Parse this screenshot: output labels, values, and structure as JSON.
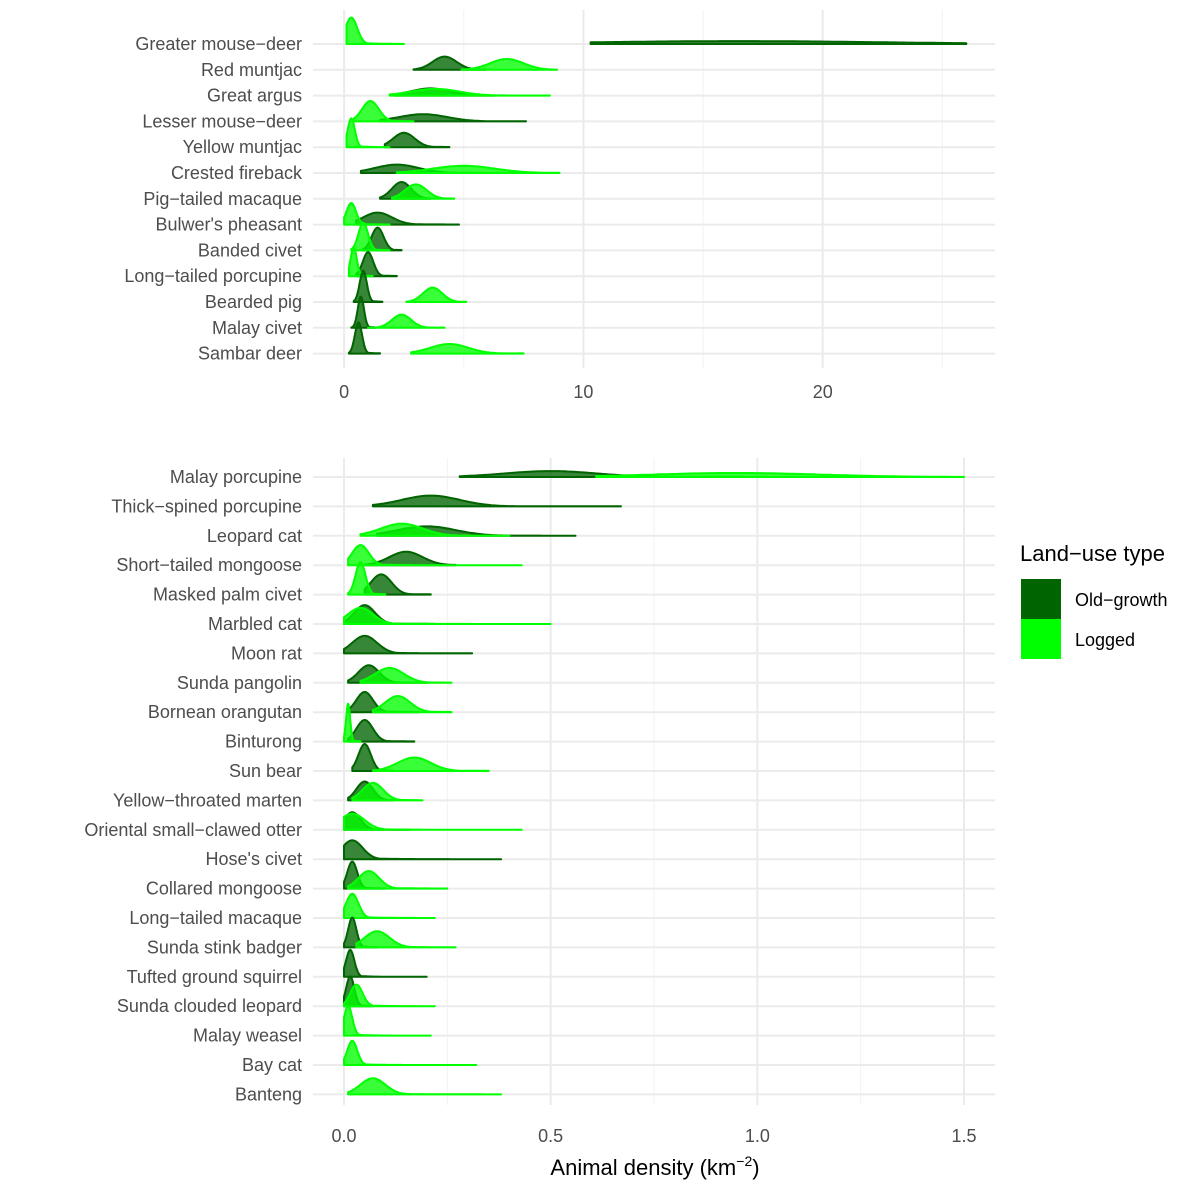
{
  "chart_data": [
    {
      "type": "area",
      "subtype": "ridgeline-density",
      "xlim": [
        -1.3,
        27.2
      ],
      "xticks": [
        "0",
        "10",
        "20"
      ],
      "xtick_values": [
        0,
        10,
        20
      ],
      "xgrid_minor": [
        5,
        15,
        25
      ],
      "grid": true,
      "series": [
        {
          "name": "Old-growth",
          "color": "#006400"
        },
        {
          "name": "Logged",
          "color": "#00ff00"
        }
      ],
      "species": [
        {
          "name": "Greater mouse−deer",
          "og": {
            "min": 10.3,
            "max": 26.0,
            "peak": 16.5,
            "sd": 6.0,
            "h": 0.12
          },
          "lg": {
            "min": 0.1,
            "max": 2.5,
            "peak": 0.3,
            "sd": 0.25,
            "h": 1.1
          }
        },
        {
          "name": "Red muntjac",
          "og": {
            "min": 2.9,
            "max": 5.9,
            "peak": 4.2,
            "sd": 0.5,
            "h": 0.55
          },
          "lg": {
            "min": 4.9,
            "max": 8.9,
            "peak": 6.8,
            "sd": 0.7,
            "h": 0.45
          }
        },
        {
          "name": "Great argus",
          "og": {
            "min": 2.1,
            "max": 6.3,
            "peak": 3.6,
            "sd": 0.8,
            "h": 0.3
          },
          "lg": {
            "min": 1.9,
            "max": 8.6,
            "peak": 3.8,
            "sd": 1.0,
            "h": 0.28
          }
        },
        {
          "name": "Lesser mouse−deer",
          "og": {
            "min": 1.5,
            "max": 7.6,
            "peak": 3.3,
            "sd": 1.0,
            "h": 0.3
          },
          "lg": {
            "min": 0.4,
            "max": 2.9,
            "peak": 1.1,
            "sd": 0.35,
            "h": 0.85
          }
        },
        {
          "name": "Yellow muntjac",
          "og": {
            "min": 1.7,
            "max": 4.4,
            "peak": 2.5,
            "sd": 0.45,
            "h": 0.6
          },
          "lg": {
            "min": 0.1,
            "max": 1.9,
            "peak": 0.3,
            "sd": 0.15,
            "h": 1.2
          }
        },
        {
          "name": "Crested fireback",
          "og": {
            "min": 0.7,
            "max": 7.2,
            "peak": 2.2,
            "sd": 0.9,
            "h": 0.35
          },
          "lg": {
            "min": 2.2,
            "max": 9.0,
            "peak": 5.0,
            "sd": 1.3,
            "h": 0.3
          }
        },
        {
          "name": "Pig−tailed macaque",
          "og": {
            "min": 1.5,
            "max": 3.6,
            "peak": 2.4,
            "sd": 0.4,
            "h": 0.7
          },
          "lg": {
            "min": 2.0,
            "max": 4.6,
            "peak": 3.0,
            "sd": 0.45,
            "h": 0.6
          }
        },
        {
          "name": "Bulwer's pheasant",
          "og": {
            "min": 0.5,
            "max": 4.8,
            "peak": 1.4,
            "sd": 0.6,
            "h": 0.5
          },
          "lg": {
            "min": 0.0,
            "max": 1.9,
            "peak": 0.3,
            "sd": 0.2,
            "h": 0.9
          }
        },
        {
          "name": "Banded civet",
          "og": {
            "min": 0.8,
            "max": 2.4,
            "peak": 1.4,
            "sd": 0.25,
            "h": 0.95
          },
          "lg": {
            "min": 0.3,
            "max": 1.9,
            "peak": 0.8,
            "sd": 0.2,
            "h": 1.15
          }
        },
        {
          "name": "Long−tailed porcupine",
          "og": {
            "min": 0.5,
            "max": 2.2,
            "peak": 1.0,
            "sd": 0.22,
            "h": 1.0
          },
          "lg": {
            "min": 0.2,
            "max": 1.2,
            "peak": 0.4,
            "sd": 0.13,
            "h": 1.2
          }
        },
        {
          "name": "Bearded pig",
          "og": {
            "min": 0.4,
            "max": 1.6,
            "peak": 0.8,
            "sd": 0.15,
            "h": 1.3
          },
          "lg": {
            "min": 2.6,
            "max": 5.1,
            "peak": 3.7,
            "sd": 0.4,
            "h": 0.6
          }
        },
        {
          "name": "Malay civet",
          "og": {
            "min": 0.3,
            "max": 1.3,
            "peak": 0.7,
            "sd": 0.13,
            "h": 1.3
          },
          "lg": {
            "min": 1.0,
            "max": 4.2,
            "peak": 2.4,
            "sd": 0.4,
            "h": 0.55
          }
        },
        {
          "name": "Sambar deer",
          "og": {
            "min": 0.2,
            "max": 1.5,
            "peak": 0.6,
            "sd": 0.15,
            "h": 1.3
          },
          "lg": {
            "min": 2.8,
            "max": 7.5,
            "peak": 4.4,
            "sd": 0.8,
            "h": 0.4
          }
        }
      ]
    },
    {
      "type": "area",
      "subtype": "ridgeline-density",
      "xlim": [
        -0.075,
        1.575
      ],
      "xticks": [
        "0.0",
        "0.5",
        "1.0",
        "1.5"
      ],
      "xtick_values": [
        0,
        0.5,
        1.0,
        1.5
      ],
      "xgrid_minor": [
        0.25,
        0.75,
        1.25
      ],
      "xlabel_prefix": "Animal density (km",
      "xlabel_superscript": "−2",
      "xlabel_suffix": ")",
      "grid": true,
      "series": [
        {
          "name": "Old-growth",
          "color": "#006400"
        },
        {
          "name": "Logged",
          "color": "#00ff00"
        }
      ],
      "species": [
        {
          "name": "Malay porcupine",
          "og": {
            "min": 0.28,
            "max": 0.97,
            "peak": 0.5,
            "sd": 0.11,
            "h": 0.22
          },
          "lg": {
            "min": 0.61,
            "max": 1.5,
            "peak": 0.95,
            "sd": 0.2,
            "h": 0.15
          }
        },
        {
          "name": "Thick−spined porcupine",
          "og": {
            "min": 0.07,
            "max": 0.67,
            "peak": 0.21,
            "sd": 0.07,
            "h": 0.4
          },
          "lg": null
        },
        {
          "name": "Leopard cat",
          "og": {
            "min": 0.08,
            "max": 0.56,
            "peak": 0.2,
            "sd": 0.07,
            "h": 0.35
          },
          "lg": {
            "min": 0.04,
            "max": 0.4,
            "peak": 0.14,
            "sd": 0.05,
            "h": 0.45
          }
        },
        {
          "name": "Short−tailed mongoose",
          "og": {
            "min": 0.05,
            "max": 0.27,
            "peak": 0.15,
            "sd": 0.04,
            "h": 0.5
          },
          "lg": {
            "min": 0.01,
            "max": 0.43,
            "peak": 0.04,
            "sd": 0.02,
            "h": 0.75
          }
        },
        {
          "name": "Masked palm civet",
          "og": {
            "min": 0.05,
            "max": 0.21,
            "peak": 0.09,
            "sd": 0.025,
            "h": 0.75
          },
          "lg": {
            "min": 0.01,
            "max": 0.1,
            "peak": 0.04,
            "sd": 0.012,
            "h": 1.2
          }
        },
        {
          "name": "Marbled cat",
          "og": {
            "min": 0.0,
            "max": 0.22,
            "peak": 0.05,
            "sd": 0.025,
            "h": 0.7
          },
          "lg": {
            "min": 0.0,
            "max": 0.5,
            "peak": 0.04,
            "sd": 0.03,
            "h": 0.6
          }
        },
        {
          "name": "Moon rat",
          "og": {
            "min": 0.0,
            "max": 0.31,
            "peak": 0.05,
            "sd": 0.03,
            "h": 0.65
          },
          "lg": null
        },
        {
          "name": "Sunda pangolin",
          "og": {
            "min": 0.01,
            "max": 0.2,
            "peak": 0.06,
            "sd": 0.025,
            "h": 0.65
          },
          "lg": {
            "min": 0.04,
            "max": 0.26,
            "peak": 0.11,
            "sd": 0.035,
            "h": 0.55
          }
        },
        {
          "name": "Bornean orangutan",
          "og": {
            "min": 0.01,
            "max": 0.18,
            "peak": 0.05,
            "sd": 0.02,
            "h": 0.75
          },
          "lg": {
            "min": 0.07,
            "max": 0.26,
            "peak": 0.13,
            "sd": 0.03,
            "h": 0.6
          }
        },
        {
          "name": "Binturong",
          "og": {
            "min": 0.01,
            "max": 0.17,
            "peak": 0.05,
            "sd": 0.02,
            "h": 0.8
          },
          "lg": {
            "min": 0.0,
            "max": 0.04,
            "peak": 0.01,
            "sd": 0.005,
            "h": 1.4
          }
        },
        {
          "name": "Sun bear",
          "og": {
            "min": 0.02,
            "max": 0.12,
            "peak": 0.05,
            "sd": 0.015,
            "h": 1.0
          },
          "lg": {
            "min": 0.07,
            "max": 0.35,
            "peak": 0.17,
            "sd": 0.04,
            "h": 0.5
          }
        },
        {
          "name": "Yellow−throated marten",
          "og": {
            "min": 0.01,
            "max": 0.12,
            "peak": 0.05,
            "sd": 0.02,
            "h": 0.7
          },
          "lg": {
            "min": 0.02,
            "max": 0.19,
            "peak": 0.07,
            "sd": 0.025,
            "h": 0.65
          }
        },
        {
          "name": "Oriental small−clawed otter",
          "og": {
            "min": 0.0,
            "max": 0.16,
            "peak": 0.02,
            "sd": 0.02,
            "h": 0.65
          },
          "lg": {
            "min": 0.0,
            "max": 0.43,
            "peak": 0.02,
            "sd": 0.03,
            "h": 0.6
          }
        },
        {
          "name": "Hose's civet",
          "og": {
            "min": 0.0,
            "max": 0.38,
            "peak": 0.02,
            "sd": 0.025,
            "h": 0.7
          },
          "lg": null
        },
        {
          "name": "Collared mongoose",
          "og": {
            "min": 0.0,
            "max": 0.1,
            "peak": 0.02,
            "sd": 0.012,
            "h": 1.0
          },
          "lg": {
            "min": 0.01,
            "max": 0.25,
            "peak": 0.06,
            "sd": 0.025,
            "h": 0.65
          }
        },
        {
          "name": "Long−tailed macaque",
          "og": null,
          "lg": {
            "min": 0.0,
            "max": 0.22,
            "peak": 0.02,
            "sd": 0.015,
            "h": 0.9
          }
        },
        {
          "name": "Sunda stink badger",
          "og": {
            "min": 0.0,
            "max": 0.08,
            "peak": 0.02,
            "sd": 0.01,
            "h": 1.1
          },
          "lg": {
            "min": 0.03,
            "max": 0.27,
            "peak": 0.08,
            "sd": 0.03,
            "h": 0.6
          }
        },
        {
          "name": "Tufted ground squirrel",
          "og": {
            "min": 0.0,
            "max": 0.2,
            "peak": 0.015,
            "sd": 0.01,
            "h": 1.0
          },
          "lg": null
        },
        {
          "name": "Sunda clouded leopard",
          "og": {
            "min": 0.0,
            "max": 0.07,
            "peak": 0.015,
            "sd": 0.01,
            "h": 1.1
          },
          "lg": {
            "min": 0.0,
            "max": 0.22,
            "peak": 0.03,
            "sd": 0.015,
            "h": 0.8
          }
        },
        {
          "name": "Malay weasel",
          "og": null,
          "lg": {
            "min": 0.0,
            "max": 0.21,
            "peak": 0.01,
            "sd": 0.01,
            "h": 1.1
          }
        },
        {
          "name": "Bay cat",
          "og": null,
          "lg": {
            "min": 0.0,
            "max": 0.32,
            "peak": 0.02,
            "sd": 0.012,
            "h": 0.9
          }
        },
        {
          "name": "Banteng",
          "og": null,
          "lg": {
            "min": 0.01,
            "max": 0.38,
            "peak": 0.07,
            "sd": 0.03,
            "h": 0.6
          }
        }
      ]
    }
  ],
  "legend": {
    "title": "Land−use type",
    "items": [
      {
        "label": "Old−growth",
        "color": "#006400"
      },
      {
        "label": "Logged",
        "color": "#00ff00"
      }
    ]
  },
  "colors": {
    "old_growth": "#006400",
    "logged": "#00ff00",
    "grid": "#ebebeb"
  }
}
